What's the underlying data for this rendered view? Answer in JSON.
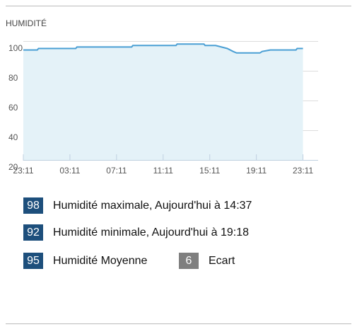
{
  "chart_data": {
    "type": "area",
    "title": "HUMIDITÉ",
    "x": [
      0,
      1.2,
      1.3,
      4.5,
      4.6,
      9.3,
      9.4,
      13.1,
      13.2,
      15.5,
      15.6,
      16.5,
      17,
      17.5,
      18,
      18.3,
      20.3,
      20.5,
      21.2,
      23.4,
      23.5,
      24
    ],
    "values": [
      94,
      94,
      95,
      95,
      96,
      96,
      97,
      97,
      98,
      98,
      97,
      97,
      96,
      95,
      93,
      92,
      92,
      93,
      94,
      94,
      95,
      95
    ],
    "color": "#4a9fd4",
    "fill": "#e4f2f8",
    "xlim": [
      0,
      25.3
    ],
    "xticks": [
      {
        "value": 0,
        "label": "23:11"
      },
      {
        "value": 4,
        "label": "03:11"
      },
      {
        "value": 8,
        "label": "07:11"
      },
      {
        "value": 12,
        "label": "11:11"
      },
      {
        "value": 16,
        "label": "15:11"
      },
      {
        "value": 20,
        "label": "19:11"
      },
      {
        "value": 24,
        "label": "23:11"
      }
    ],
    "ylim": [
      20,
      100
    ],
    "yticks": [
      20,
      40,
      60,
      80,
      100
    ],
    "grid": true
  },
  "summary": [
    {
      "value": 98,
      "text": "Humidité maximale, Aujourd'hui à 14:37",
      "color": "#1d4f7c"
    },
    {
      "value": 92,
      "text": "Humidité minimale, Aujourd'hui à 19:18",
      "color": "#1d4f7c"
    },
    {
      "value": 95,
      "text": "Humidité Moyenne",
      "color": "#1d4f7c"
    },
    {
      "value": 6,
      "text": "Ecart",
      "color": "#7f7f7f"
    }
  ]
}
